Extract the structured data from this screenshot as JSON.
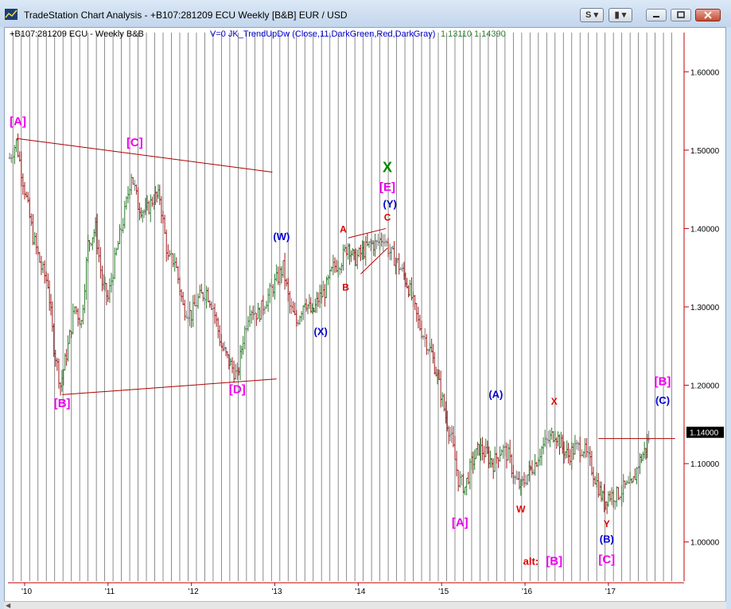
{
  "window": {
    "title": "TradeStation Chart Analysis - +B107:281209 ECU Weekly [B&B] EUR / USD",
    "buttons": {
      "s_label": "S",
      "s_arrow": "▾",
      "grid_label": "▮",
      "grid_arrow": "▾"
    }
  },
  "header": {
    "symbol": "+B107:281209 ECU - Weekly  B&B",
    "indicator": "V=0  JK_TrendUpDw (Close,11,DarkGreen,Red,DarkGray)",
    "value_1": "1.13110",
    "value_2": "1.14390"
  },
  "colors": {
    "up": "#2e7d2e",
    "down": "#a01c1c",
    "neutral": "#7a7a7a",
    "grid": "#707070",
    "axis": "#c00000",
    "magenta": "#ee00ee",
    "blue": "#0000cc",
    "red": "#dd0000",
    "green": "#008800",
    "trendline": "#b00000"
  },
  "chart_data": {
    "type": "bar",
    "subtype": "ohlc-weekly",
    "title": "",
    "ylim": [
      0.95,
      1.65
    ],
    "y_ticks": [
      "1.60000",
      "1.50000",
      "1.40000",
      "1.30000",
      "1.20000",
      "1.10000",
      "1.00000"
    ],
    "y_tick_values": [
      1.6,
      1.5,
      1.4,
      1.3,
      1.2,
      1.1,
      1.0
    ],
    "x_ticks": [
      "'10",
      "'11",
      "'12",
      "'13",
      "'14",
      "'15",
      "'16",
      "'17"
    ],
    "x_tick_values": [
      2010.0,
      2011.0,
      2012.0,
      2013.0,
      2014.0,
      2015.0,
      2016.0,
      2017.0
    ],
    "xlim": [
      2009.8,
      2017.85
    ],
    "last_price": "1.14000",
    "last_price_value": 1.14,
    "grid": true,
    "price_path": [
      [
        2009.82,
        1.49
      ],
      [
        2009.9,
        1.51
      ],
      [
        2010.0,
        1.45
      ],
      [
        2010.1,
        1.39
      ],
      [
        2010.2,
        1.35
      ],
      [
        2010.28,
        1.33
      ],
      [
        2010.35,
        1.25
      ],
      [
        2010.43,
        1.2
      ],
      [
        2010.52,
        1.25
      ],
      [
        2010.6,
        1.3
      ],
      [
        2010.68,
        1.28
      ],
      [
        2010.76,
        1.38
      ],
      [
        2010.85,
        1.4
      ],
      [
        2010.93,
        1.33
      ],
      [
        2011.0,
        1.31
      ],
      [
        2011.1,
        1.37
      ],
      [
        2011.2,
        1.42
      ],
      [
        2011.28,
        1.47
      ],
      [
        2011.36,
        1.43
      ],
      [
        2011.45,
        1.42
      ],
      [
        2011.55,
        1.44
      ],
      [
        2011.62,
        1.44
      ],
      [
        2011.72,
        1.36
      ],
      [
        2011.8,
        1.36
      ],
      [
        2011.9,
        1.3
      ],
      [
        2012.0,
        1.29
      ],
      [
        2012.08,
        1.31
      ],
      [
        2012.18,
        1.32
      ],
      [
        2012.26,
        1.3
      ],
      [
        2012.36,
        1.25
      ],
      [
        2012.45,
        1.23
      ],
      [
        2012.55,
        1.21
      ],
      [
        2012.62,
        1.26
      ],
      [
        2012.7,
        1.3
      ],
      [
        2012.8,
        1.29
      ],
      [
        2012.9,
        1.31
      ],
      [
        2013.0,
        1.33
      ],
      [
        2013.1,
        1.35
      ],
      [
        2013.18,
        1.3
      ],
      [
        2013.26,
        1.28
      ],
      [
        2013.36,
        1.31
      ],
      [
        2013.45,
        1.29
      ],
      [
        2013.52,
        1.31
      ],
      [
        2013.6,
        1.32
      ],
      [
        2013.7,
        1.35
      ],
      [
        2013.8,
        1.36
      ],
      [
        2013.88,
        1.38
      ],
      [
        2013.95,
        1.36
      ],
      [
        2014.05,
        1.37
      ],
      [
        2014.15,
        1.38
      ],
      [
        2014.22,
        1.38
      ],
      [
        2014.3,
        1.39
      ],
      [
        2014.38,
        1.37
      ],
      [
        2014.45,
        1.36
      ],
      [
        2014.55,
        1.34
      ],
      [
        2014.62,
        1.32
      ],
      [
        2014.72,
        1.28
      ],
      [
        2014.8,
        1.26
      ],
      [
        2014.88,
        1.24
      ],
      [
        2014.95,
        1.21
      ],
      [
        2015.05,
        1.16
      ],
      [
        2015.12,
        1.13
      ],
      [
        2015.2,
        1.08
      ],
      [
        2015.28,
        1.07
      ],
      [
        2015.36,
        1.1
      ],
      [
        2015.45,
        1.12
      ],
      [
        2015.55,
        1.11
      ],
      [
        2015.62,
        1.1
      ],
      [
        2015.72,
        1.12
      ],
      [
        2015.8,
        1.11
      ],
      [
        2015.88,
        1.08
      ],
      [
        2015.95,
        1.07
      ],
      [
        2016.05,
        1.09
      ],
      [
        2016.12,
        1.1
      ],
      [
        2016.2,
        1.12
      ],
      [
        2016.28,
        1.13
      ],
      [
        2016.36,
        1.14
      ],
      [
        2016.45,
        1.12
      ],
      [
        2016.52,
        1.11
      ],
      [
        2016.6,
        1.12
      ],
      [
        2016.7,
        1.12
      ],
      [
        2016.78,
        1.1
      ],
      [
        2016.88,
        1.07
      ],
      [
        2016.95,
        1.05
      ],
      [
        2017.0,
        1.06
      ],
      [
        2017.1,
        1.06
      ],
      [
        2017.2,
        1.07
      ],
      [
        2017.28,
        1.07
      ],
      [
        2017.36,
        1.1
      ],
      [
        2017.45,
        1.12
      ],
      [
        2017.5,
        1.14
      ]
    ]
  },
  "labels": [
    {
      "text": "[A]",
      "x": 2009.92,
      "y": 1.532,
      "color": "magenta"
    },
    {
      "text": "[C]",
      "x": 2011.32,
      "y": 1.505,
      "color": "magenta"
    },
    {
      "text": "[B]",
      "x": 2010.45,
      "y": 1.172,
      "color": "magenta"
    },
    {
      "text": "[D]",
      "x": 2012.55,
      "y": 1.19,
      "color": "magenta"
    },
    {
      "text": "(W)",
      "x": 2013.08,
      "y": 1.385,
      "color": "blue"
    },
    {
      "text": "(X)",
      "x": 2013.55,
      "y": 1.264,
      "color": "blue"
    },
    {
      "text": "A",
      "x": 2013.82,
      "y": 1.395,
      "color": "red"
    },
    {
      "text": "B",
      "x": 2013.85,
      "y": 1.321,
      "color": "red"
    },
    {
      "text": "C",
      "x": 2014.35,
      "y": 1.41,
      "color": "red"
    },
    {
      "text": "X",
      "x": 2014.35,
      "y": 1.472,
      "color": "green"
    },
    {
      "text": "[E]",
      "x": 2014.35,
      "y": 1.448,
      "color": "magenta"
    },
    {
      "text": "(Y)",
      "x": 2014.38,
      "y": 1.427,
      "color": "blue"
    },
    {
      "text": "[A]",
      "x": 2015.22,
      "y": 1.02,
      "color": "magenta"
    },
    {
      "text": "(A)",
      "x": 2015.65,
      "y": 1.184,
      "color": "blue"
    },
    {
      "text": "W",
      "x": 2015.95,
      "y": 1.038,
      "color": "red"
    },
    {
      "text": "X",
      "x": 2016.35,
      "y": 1.175,
      "color": "red"
    },
    {
      "text": "Y",
      "x": 2016.98,
      "y": 1.019,
      "color": "red"
    },
    {
      "text": "(B)",
      "x": 2016.98,
      "y": 0.999,
      "color": "blue"
    },
    {
      "text": "[C]",
      "x": 2016.98,
      "y": 0.973,
      "color": "magenta"
    },
    {
      "text": "alt:",
      "x": 2016.07,
      "y": 0.971,
      "color": "red"
    },
    {
      "text": "[B]",
      "x": 2016.35,
      "y": 0.971,
      "color": "magenta"
    },
    {
      "text": "[B]",
      "x": 2017.65,
      "y": 1.2,
      "color": "magenta"
    },
    {
      "text": "(C)",
      "x": 2017.65,
      "y": 1.176,
      "color": "blue"
    }
  ],
  "trendlines": [
    {
      "x1": 2009.9,
      "y1": 1.515,
      "x2": 2012.97,
      "y2": 1.472
    },
    {
      "x1": 2010.45,
      "y1": 1.188,
      "x2": 2013.02,
      "y2": 1.208
    },
    {
      "x1": 2013.88,
      "y1": 1.388,
      "x2": 2014.33,
      "y2": 1.4
    },
    {
      "x1": 2014.35,
      "y1": 1.375,
      "x2": 2014.03,
      "y2": 1.342
    },
    {
      "x1": 2016.88,
      "y1": 1.132,
      "x2": 2017.8,
      "y2": 1.132
    }
  ]
}
